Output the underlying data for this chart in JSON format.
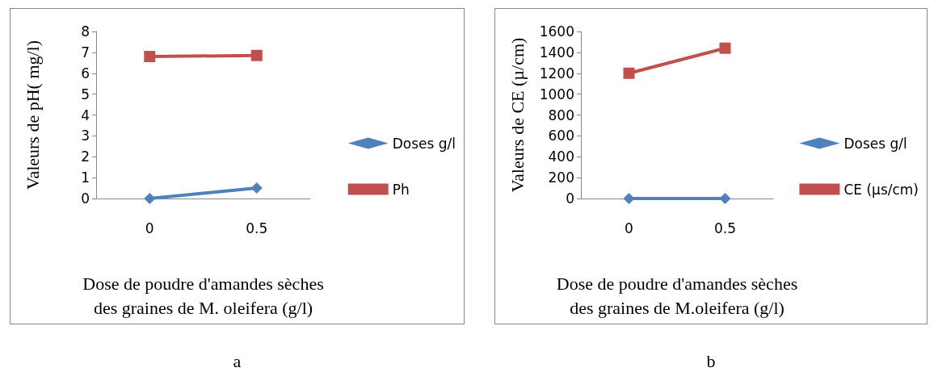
{
  "chart_data": [
    {
      "type": "line",
      "categories": [
        "0",
        "0.5"
      ],
      "xlabel": "Dose de poudre d'amandes sèches\ndes graines de M. oleifera (g/l)",
      "ylabel": "Valeurs de pH( mg/l)",
      "ylim": [
        0,
        8
      ],
      "yticks": [
        0,
        1,
        2,
        3,
        4,
        5,
        6,
        7,
        8
      ],
      "grid": false,
      "legend": "right",
      "annotations": [
        "a"
      ],
      "series": [
        {
          "name": "Doses g/l",
          "color": "#4f81bd",
          "marker": "diamond",
          "values": [
            0,
            0.5
          ]
        },
        {
          "name": "Ph",
          "color": "#c0504d",
          "marker": "square",
          "values": [
            6.8,
            6.85
          ]
        }
      ]
    },
    {
      "type": "line",
      "categories": [
        "0",
        "0.5"
      ],
      "xlabel": "Dose de poudre d'amandes sèches\ndes graines de M.oleifera (g/l)",
      "ylabel": "Valeurs de CE (µ/cm)",
      "ylim": [
        0,
        1600
      ],
      "yticks": [
        0,
        200,
        400,
        600,
        800,
        1000,
        1200,
        1400,
        1600
      ],
      "grid": false,
      "legend": "right",
      "annotations": [
        "b"
      ],
      "series": [
        {
          "name": "Doses g/l",
          "color": "#4f81bd",
          "marker": "diamond",
          "values": [
            0,
            0
          ]
        },
        {
          "name": "CE (µs/cm)",
          "color": "#c0504d",
          "marker": "square",
          "values": [
            1200,
            1440
          ]
        }
      ]
    }
  ]
}
